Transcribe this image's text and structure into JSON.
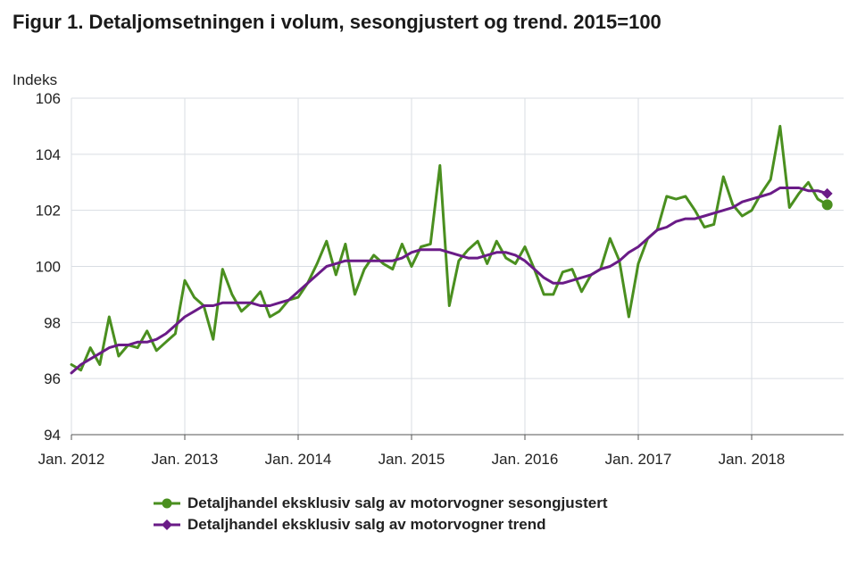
{
  "chart_data": {
    "type": "line",
    "title": "Figur 1. Detaljomsetningen i volum, sesongjustert og trend. 2015=100",
    "ylabel": "Indeks",
    "ylim": [
      94,
      106
    ],
    "yticks": [
      "94",
      "96",
      "98",
      "100",
      "102",
      "104",
      "106"
    ],
    "x_start": "2012-01",
    "x_tick_labels": [
      "Jan. 2012",
      "Jan. 2013",
      "Jan. 2014",
      "Jan. 2015",
      "Jan. 2016",
      "Jan. 2017",
      "Jan. 2018"
    ],
    "grid": true,
    "legend_position": "bottom",
    "series": [
      {
        "name": "Detaljhandel eksklusiv salg av motorvogner sesongjustert",
        "color": "#4a8f1f",
        "marker": "circle-last",
        "values": [
          96.5,
          96.3,
          97.1,
          96.5,
          98.2,
          96.8,
          97.2,
          97.1,
          97.7,
          97.0,
          97.3,
          97.6,
          99.5,
          98.9,
          98.6,
          97.4,
          99.9,
          99.0,
          98.4,
          98.7,
          99.1,
          98.2,
          98.4,
          98.8,
          98.9,
          99.4,
          100.1,
          100.9,
          99.7,
          100.8,
          99.0,
          99.9,
          100.4,
          100.1,
          99.9,
          100.8,
          100.0,
          100.7,
          100.8,
          103.6,
          98.6,
          100.2,
          100.6,
          100.9,
          100.1,
          100.9,
          100.3,
          100.1,
          100.7,
          99.9,
          99.0,
          99.0,
          99.8,
          99.9,
          99.1,
          99.7,
          99.9,
          101.0,
          100.2,
          98.2,
          100.1,
          101.0,
          101.3,
          102.5,
          102.4,
          102.5,
          102.0,
          101.4,
          101.5,
          103.2,
          102.2,
          101.8,
          102.0,
          102.6,
          103.1,
          105.0,
          102.1,
          102.6,
          103.0,
          102.4,
          102.2
        ]
      },
      {
        "name": "Detaljhandel eksklusiv salg av motorvogner trend",
        "color": "#6a1b87",
        "marker": "diamond-last",
        "values": [
          96.2,
          96.5,
          96.7,
          96.9,
          97.1,
          97.2,
          97.2,
          97.3,
          97.3,
          97.4,
          97.6,
          97.9,
          98.2,
          98.4,
          98.6,
          98.6,
          98.7,
          98.7,
          98.7,
          98.7,
          98.6,
          98.6,
          98.7,
          98.8,
          99.1,
          99.4,
          99.7,
          100.0,
          100.1,
          100.2,
          100.2,
          100.2,
          100.2,
          100.2,
          100.2,
          100.3,
          100.5,
          100.6,
          100.6,
          100.6,
          100.5,
          100.4,
          100.3,
          100.3,
          100.4,
          100.5,
          100.5,
          100.4,
          100.2,
          99.9,
          99.6,
          99.4,
          99.4,
          99.5,
          99.6,
          99.7,
          99.9,
          100.0,
          100.2,
          100.5,
          100.7,
          101.0,
          101.3,
          101.4,
          101.6,
          101.7,
          101.7,
          101.8,
          101.9,
          102.0,
          102.1,
          102.3,
          102.4,
          102.5,
          102.6,
          102.8,
          102.8,
          102.8,
          102.7,
          102.7,
          102.6
        ]
      }
    ]
  }
}
